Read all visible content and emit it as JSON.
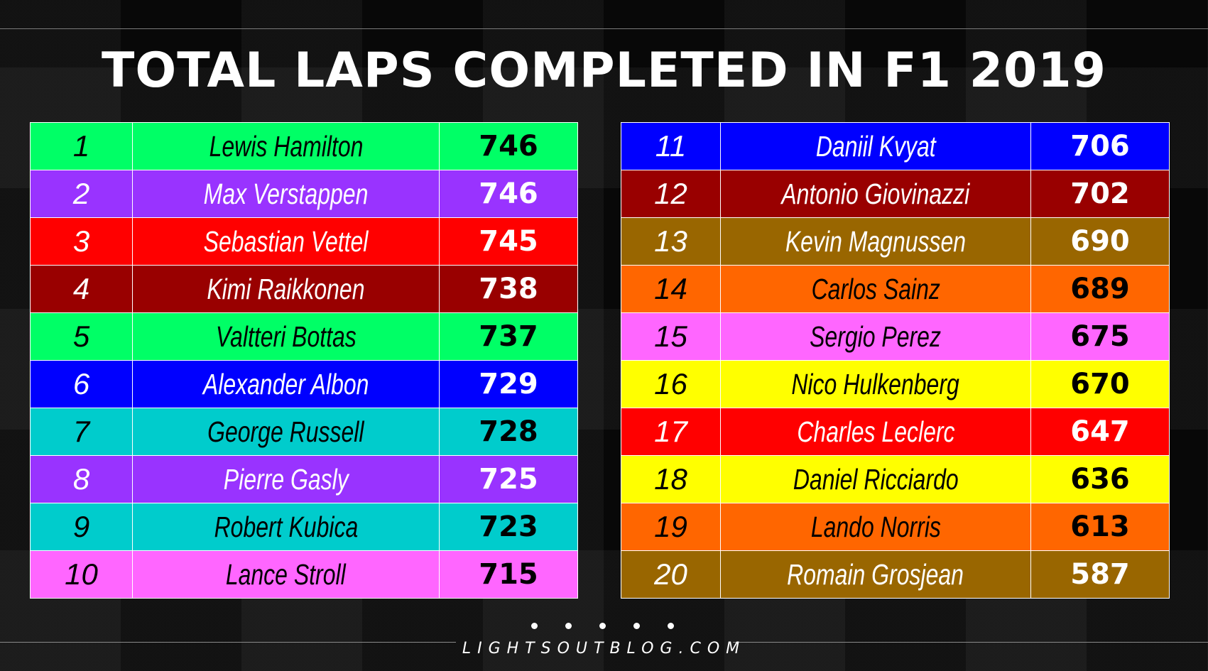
{
  "title": "TOTAL LAPS COMPLETED IN F1 2019",
  "brand": "LIGHTSOUTBLOG.COM",
  "chart_data": {
    "type": "table",
    "title": "TOTAL LAPS COMPLETED IN F1 2019",
    "rows": [
      {
        "pos": "1",
        "driver": "Lewis Hamilton",
        "laps": 746,
        "bg": "#00ff66",
        "fg": "#000000"
      },
      {
        "pos": "2",
        "driver": "Max Verstappen",
        "laps": 746,
        "bg": "#9933ff",
        "fg": "#ffffff"
      },
      {
        "pos": "3",
        "driver": "Sebastian Vettel",
        "laps": 745,
        "bg": "#ff0000",
        "fg": "#ffffff"
      },
      {
        "pos": "4",
        "driver": "Kimi Raikkonen",
        "laps": 738,
        "bg": "#990000",
        "fg": "#ffffff"
      },
      {
        "pos": "5",
        "driver": "Valtteri Bottas",
        "laps": 737,
        "bg": "#00ff66",
        "fg": "#000000"
      },
      {
        "pos": "6",
        "driver": "Alexander Albon",
        "laps": 729,
        "bg": "#0000ff",
        "fg": "#ffffff"
      },
      {
        "pos": "7",
        "driver": "George Russell",
        "laps": 728,
        "bg": "#00cccc",
        "fg": "#000000"
      },
      {
        "pos": "8",
        "driver": "Pierre Gasly",
        "laps": 725,
        "bg": "#9933ff",
        "fg": "#ffffff"
      },
      {
        "pos": "9",
        "driver": "Robert Kubica",
        "laps": 723,
        "bg": "#00cccc",
        "fg": "#000000"
      },
      {
        "pos": "10",
        "driver": "Lance Stroll",
        "laps": 715,
        "bg": "#ff66ff",
        "fg": "#000000"
      },
      {
        "pos": "11",
        "driver": "Daniil Kvyat",
        "laps": 706,
        "bg": "#0000ff",
        "fg": "#ffffff"
      },
      {
        "pos": "12",
        "driver": "Antonio Giovinazzi",
        "laps": 702,
        "bg": "#990000",
        "fg": "#ffffff"
      },
      {
        "pos": "13",
        "driver": "Kevin Magnussen",
        "laps": 690,
        "bg": "#996600",
        "fg": "#ffffff"
      },
      {
        "pos": "14",
        "driver": "Carlos Sainz",
        "laps": 689,
        "bg": "#ff6600",
        "fg": "#000000"
      },
      {
        "pos": "15",
        "driver": "Sergio Perez",
        "laps": 675,
        "bg": "#ff66ff",
        "fg": "#000000"
      },
      {
        "pos": "16",
        "driver": "Nico Hulkenberg",
        "laps": 670,
        "bg": "#ffff00",
        "fg": "#000000"
      },
      {
        "pos": "17",
        "driver": "Charles Leclerc",
        "laps": 647,
        "bg": "#ff0000",
        "fg": "#ffffff"
      },
      {
        "pos": "18",
        "driver": "Daniel Ricciardo",
        "laps": 636,
        "bg": "#ffff00",
        "fg": "#000000"
      },
      {
        "pos": "19",
        "driver": "Lando Norris",
        "laps": 613,
        "bg": "#ff6600",
        "fg": "#000000"
      },
      {
        "pos": "20",
        "driver": "Romain Grosjean",
        "laps": 587,
        "bg": "#996600",
        "fg": "#ffffff"
      }
    ]
  }
}
